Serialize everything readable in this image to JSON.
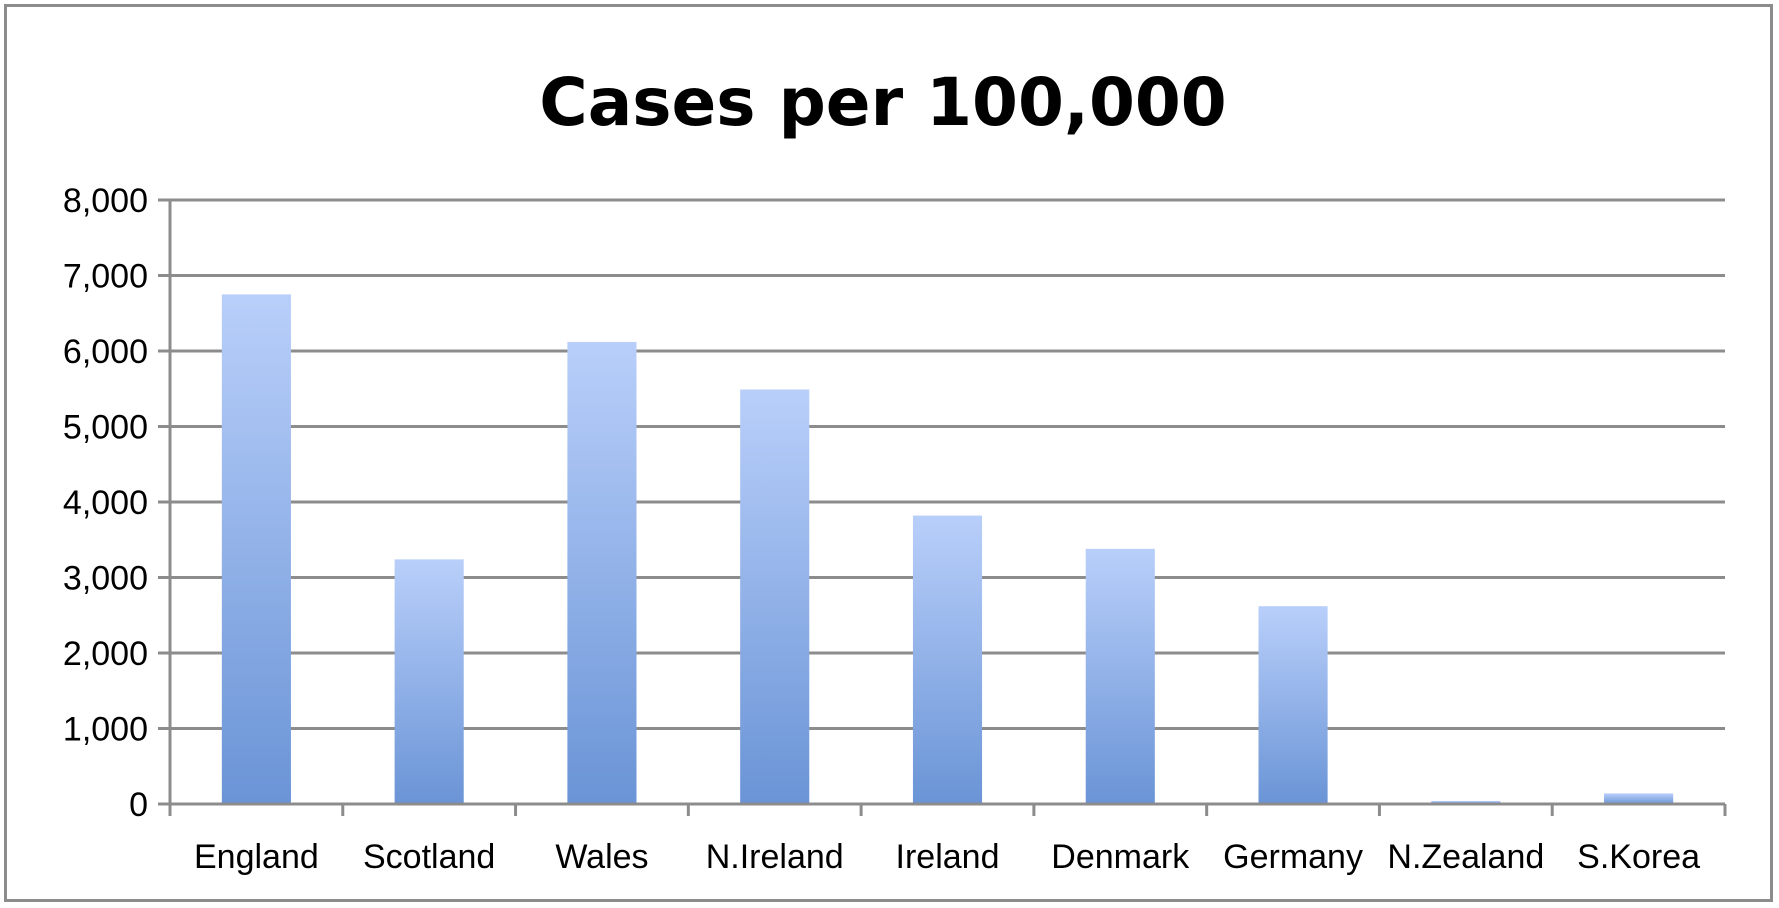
{
  "chart_data": {
    "type": "bar",
    "title": "Cases per 100,000",
    "categories": [
      "England",
      "Scotland",
      "Wales",
      "N.Ireland",
      "Ireland",
      "Denmark",
      "Germany",
      "N.Zealand",
      "S.Korea"
    ],
    "values": [
      6750,
      3240,
      6120,
      5490,
      3820,
      3380,
      2620,
      40,
      140
    ],
    "ylim": [
      0,
      8000
    ],
    "yticks": [
      0,
      1000,
      2000,
      3000,
      4000,
      5000,
      6000,
      7000,
      8000
    ],
    "ytick_labels": [
      "0",
      "1,000",
      "2,000",
      "3,000",
      "4,000",
      "5,000",
      "6,000",
      "7,000",
      "8,000"
    ],
    "grid": true,
    "legend": "none",
    "colors": {
      "bar_top": "#b9cffa",
      "bar_bottom": "#6a94d6",
      "grid": "#8c8c8c",
      "axis": "#8c8c8c",
      "frame": "#8c8c8c"
    }
  }
}
